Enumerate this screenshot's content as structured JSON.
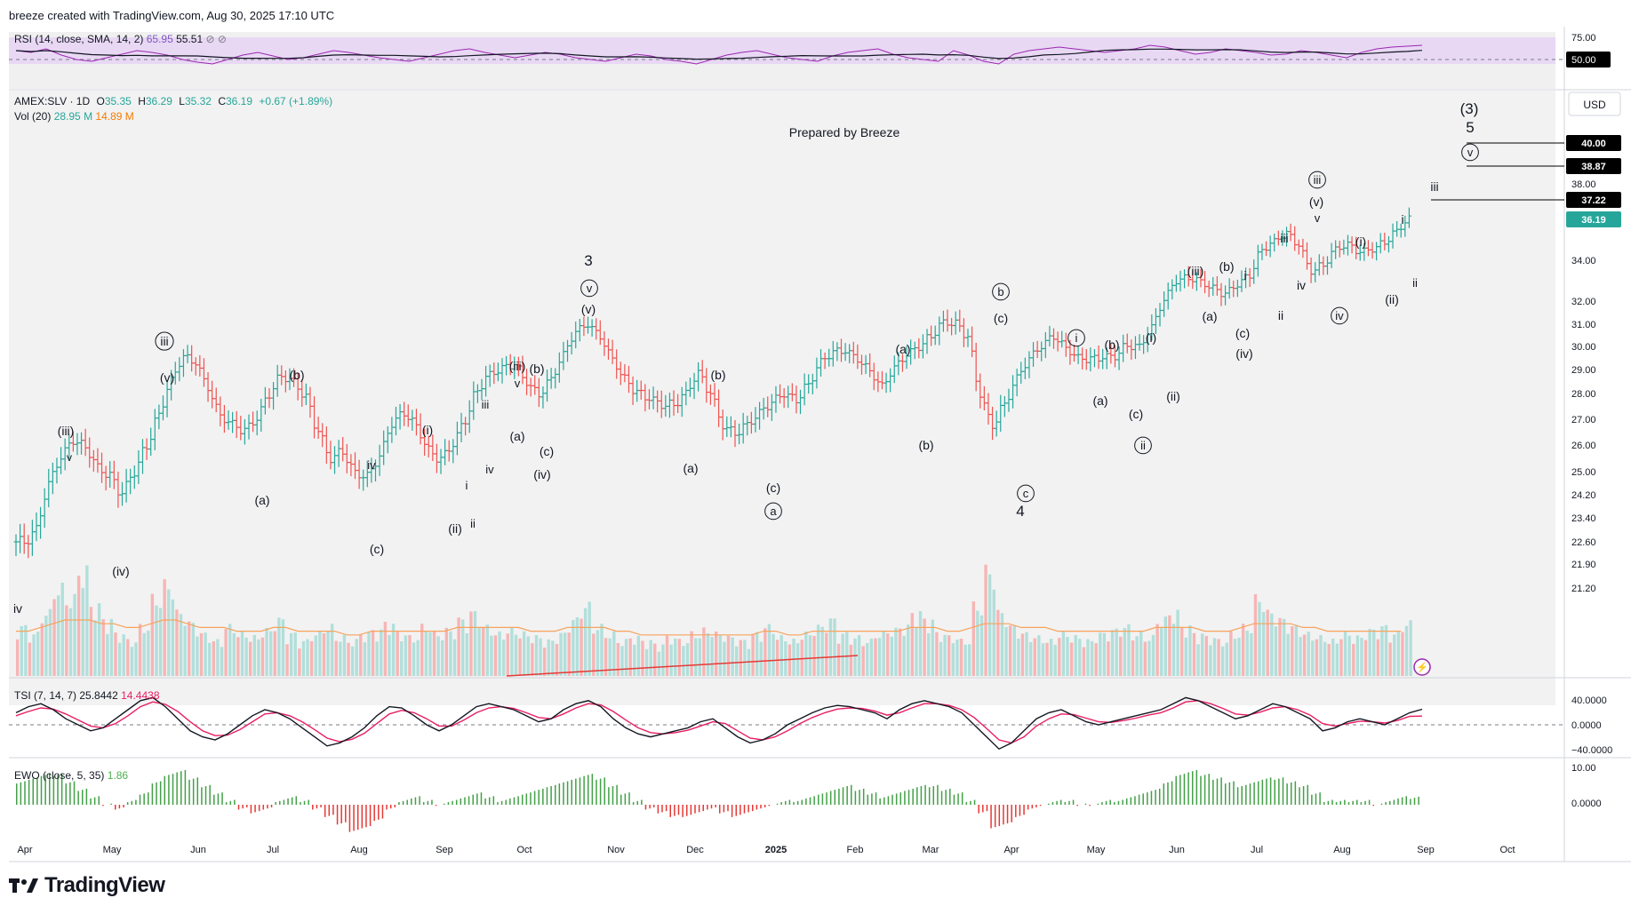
{
  "header": {
    "credit": "breeze created with TradingView.com, Aug 30, 2025 17:10 UTC"
  },
  "footer": {
    "brand": "TradingView"
  },
  "chart_data": {
    "type": "candlestick",
    "symbol_line": {
      "symbol": "AMEX:SLV · 1D",
      "o_label": "O",
      "o": "35.35",
      "h_label": "H",
      "h": "36.29",
      "l_label": "L",
      "l": "35.32",
      "c_label": "C",
      "c": "36.19",
      "change": "+0.67 (+1.89%)"
    },
    "volume_legend": {
      "label": "Vol (20)",
      "v1": "28.95 M",
      "v2": "14.89 M"
    },
    "annotation": "Prepared by Breeze",
    "currency": "USD",
    "price_axis": [
      "40.00",
      "38.87",
      "38.00",
      "37.22",
      "36.19",
      "34.00",
      "32.00",
      "31.00",
      "30.00",
      "29.00",
      "28.00",
      "27.00",
      "26.00",
      "25.00",
      "24.20",
      "23.40",
      "22.60",
      "21.90",
      "21.20"
    ],
    "price_badges": [
      {
        "value": "40.00",
        "color": "#000000"
      },
      {
        "value": "38.87",
        "color": "#000000"
      },
      {
        "value": "37.22",
        "color": "#000000"
      },
      {
        "value": "36.19",
        "color": "#26a69a"
      }
    ],
    "x_axis": [
      "Apr",
      "May",
      "Jun",
      "Jul",
      "Aug",
      "Sep",
      "Oct",
      "Nov",
      "Dec",
      "2025",
      "Feb",
      "Mar",
      "Apr",
      "May",
      "Jun",
      "Jul",
      "Aug",
      "Sep",
      "Oct"
    ],
    "x_axis_bold": "2025",
    "close_series": [
      22.6,
      23.0,
      24.5,
      25.5,
      26.2,
      26.0,
      25.2,
      24.8,
      24.2,
      25.0,
      26.0,
      27.2,
      28.5,
      29.5,
      29.3,
      28.3,
      27.2,
      26.8,
      26.5,
      27.0,
      28.0,
      28.8,
      28.5,
      27.8,
      26.5,
      25.5,
      25.8,
      25.0,
      24.8,
      25.5,
      26.8,
      27.3,
      26.8,
      25.8,
      25.4,
      26.0,
      27.0,
      28.2,
      28.8,
      29.0,
      29.2,
      28.5,
      28.0,
      28.6,
      29.6,
      30.6,
      31.0,
      30.5,
      29.5,
      28.6,
      28.0,
      27.8,
      27.6,
      27.6,
      28.0,
      28.8,
      28.0,
      26.8,
      26.5,
      26.8,
      27.2,
      27.6,
      28.0,
      27.8,
      28.4,
      29.3,
      29.7,
      29.8,
      29.5,
      29.0,
      28.3,
      29.0,
      29.6,
      30.0,
      30.5,
      31.1,
      31.0,
      30.4,
      28.0,
      26.8,
      27.6,
      28.6,
      29.4,
      30.0,
      30.5,
      30.0,
      29.5,
      29.4,
      29.5,
      29.6,
      30.1,
      30.0,
      30.8,
      32.0,
      33.0,
      33.2,
      33.0,
      32.6,
      32.3,
      32.8,
      33.3,
      34.6,
      35.0,
      35.4,
      34.8,
      33.5,
      33.8,
      34.6,
      34.8,
      34.4,
      34.6,
      35.0,
      35.6,
      36.19
    ],
    "rsi": {
      "label": "RSI (14, close, SMA, 14, 2)",
      "value": "65.95",
      "sma": "55.51",
      "axis": [
        "75.00",
        "50.00"
      ],
      "values": [
        60,
        58,
        62,
        55,
        50,
        48,
        52,
        56,
        60,
        58,
        55,
        50,
        47,
        45,
        50,
        55,
        58,
        54,
        50,
        52,
        56,
        60,
        58,
        55,
        52,
        50,
        48,
        52,
        56,
        60,
        62,
        58,
        55,
        52,
        55,
        58,
        56,
        52,
        50,
        48,
        52,
        56,
        54,
        50,
        48,
        45,
        50,
        55,
        58,
        60,
        56,
        52,
        50,
        48,
        54,
        58,
        60,
        62,
        56,
        52,
        50,
        48,
        60,
        55,
        48,
        45,
        56,
        60,
        62,
        64,
        62,
        60,
        58,
        60,
        62,
        66,
        64,
        60,
        56,
        58,
        62,
        60,
        58,
        55,
        56,
        60,
        58,
        55,
        52,
        58,
        62,
        64,
        65,
        66
      ]
    },
    "volume": {
      "values": [
        14,
        12,
        18,
        25,
        22,
        30,
        20,
        16,
        12,
        10,
        14,
        22,
        26,
        18,
        15,
        12,
        10,
        14,
        12,
        11,
        13,
        16,
        12,
        10,
        12,
        14,
        11,
        10,
        12,
        13,
        15,
        12,
        11,
        14,
        12,
        13,
        16,
        18,
        14,
        12,
        13,
        12,
        11,
        10,
        12,
        16,
        20,
        14,
        12,
        10,
        11,
        10,
        9,
        11,
        10,
        12,
        13,
        12,
        11,
        10,
        12,
        14,
        11,
        10,
        12,
        14,
        16,
        12,
        11,
        10,
        12,
        13,
        14,
        18,
        16,
        12,
        11,
        10,
        20,
        30,
        18,
        14,
        12,
        11,
        10,
        12,
        11,
        10,
        12,
        13,
        14,
        12,
        11,
        16,
        18,
        14,
        12,
        11,
        10,
        12,
        14,
        22,
        18,
        16,
        14,
        12,
        11,
        10,
        12,
        11,
        13,
        14,
        12,
        15
      ],
      "ma": [
        12,
        12,
        13,
        14,
        15,
        15,
        15,
        14,
        14,
        13,
        13,
        14,
        15,
        15,
        14,
        13,
        13,
        13,
        12,
        12,
        12,
        13,
        13,
        12,
        12,
        12,
        12,
        11,
        11,
        12,
        12,
        12,
        12,
        12,
        12,
        12,
        13,
        13,
        13,
        13,
        13,
        13,
        12,
        12,
        12,
        13,
        13,
        13,
        13,
        12,
        12,
        11,
        11,
        11,
        11,
        11,
        11,
        11,
        11,
        11,
        11,
        12,
        12,
        11,
        11,
        12,
        12,
        12,
        12,
        12,
        12,
        12,
        12,
        13,
        13,
        13,
        12,
        12,
        13,
        14,
        14,
        14,
        13,
        13,
        13,
        12,
        12,
        12,
        12,
        12,
        12,
        12,
        12,
        13,
        13,
        13,
        13,
        12,
        12,
        12,
        13,
        14,
        14,
        14,
        14,
        13,
        13,
        12,
        12,
        12,
        12,
        12,
        12,
        12
      ]
    },
    "tsi": {
      "label": "TSI (7, 14, 7)",
      "value": "25.8442",
      "signal": "14.4438",
      "axis": [
        "40.0000",
        "0.0000",
        "−40.0000"
      ],
      "values": [
        20,
        30,
        35,
        25,
        10,
        0,
        -10,
        -5,
        10,
        25,
        40,
        45,
        30,
        10,
        -10,
        -20,
        -25,
        -15,
        0,
        15,
        25,
        20,
        10,
        -5,
        -20,
        -35,
        -30,
        -20,
        -5,
        15,
        30,
        28,
        15,
        0,
        -10,
        0,
        15,
        30,
        35,
        30,
        25,
        15,
        5,
        10,
        25,
        35,
        40,
        30,
        10,
        -5,
        -15,
        -20,
        -15,
        -10,
        -5,
        5,
        10,
        -5,
        -20,
        -30,
        -25,
        -15,
        0,
        10,
        20,
        28,
        32,
        30,
        25,
        20,
        10,
        25,
        35,
        40,
        35,
        30,
        20,
        0,
        -20,
        -40,
        -30,
        -10,
        10,
        20,
        25,
        15,
        5,
        0,
        5,
        10,
        15,
        20,
        25,
        35,
        45,
        40,
        30,
        20,
        10,
        15,
        25,
        35,
        30,
        20,
        10,
        -10,
        -5,
        5,
        10,
        5,
        0,
        10,
        20,
        25.8
      ],
      "signal_values": [
        15,
        22,
        28,
        26,
        18,
        8,
        -2,
        -5,
        2,
        15,
        30,
        38,
        34,
        22,
        5,
        -10,
        -18,
        -17,
        -8,
        5,
        18,
        20,
        15,
        5,
        -8,
        -22,
        -28,
        -24,
        -14,
        2,
        18,
        24,
        20,
        10,
        -2,
        -2,
        8,
        20,
        28,
        30,
        27,
        20,
        12,
        10,
        18,
        28,
        35,
        33,
        22,
        8,
        -5,
        -13,
        -15,
        -13,
        -9,
        -2,
        5,
        2,
        -10,
        -22,
        -25,
        -20,
        -10,
        2,
        12,
        20,
        26,
        28,
        27,
        23,
        16,
        20,
        28,
        35,
        35,
        32,
        25,
        12,
        -6,
        -25,
        -30,
        -20,
        -2,
        10,
        18,
        17,
        11,
        5,
        4,
        7,
        11,
        16,
        20,
        28,
        38,
        40,
        35,
        27,
        18,
        16,
        21,
        28,
        30,
        25,
        16,
        2,
        -2,
        2,
        6,
        5,
        3,
        7,
        14,
        14.4
      ]
    },
    "ewo": {
      "label": "EWO (close, 5, 35)",
      "value": "1.86",
      "axis": [
        "10.00",
        "0.0000"
      ],
      "values": [
        6,
        7,
        8,
        8,
        6,
        4,
        2,
        0,
        -1,
        1,
        3,
        6,
        8,
        9,
        7,
        5,
        3,
        1,
        -1,
        -2,
        -1,
        1,
        2,
        1,
        -1,
        -3,
        -5,
        -7,
        -6,
        -4,
        -1,
        1,
        2,
        1,
        0,
        1,
        2,
        3,
        2,
        1,
        2,
        3,
        4,
        5,
        6,
        7,
        8,
        7,
        5,
        3,
        1,
        -1,
        -2,
        -3,
        -3,
        -2,
        -1,
        -2,
        -3,
        -2,
        -1,
        0,
        1,
        1,
        2,
        3,
        4,
        5,
        4,
        3,
        2,
        3,
        4,
        5,
        5,
        4,
        3,
        1,
        -2,
        -6,
        -5,
        -3,
        -1,
        0,
        1,
        1,
        0,
        0,
        1,
        1,
        2,
        3,
        4,
        6,
        8,
        9,
        8,
        7,
        6,
        5,
        6,
        7,
        7,
        6,
        5,
        3,
        1,
        1,
        1,
        1,
        0,
        1,
        2,
        1.86
      ]
    },
    "wave_labels": [
      "iv",
      "(iii)",
      "v",
      "(iv)",
      "iii",
      "(v)",
      "(a)",
      "(b)",
      "(c)",
      "iv",
      "(i)",
      "(ii)",
      "i",
      "ii",
      "iii",
      "iv",
      "(iii)",
      "v",
      "(a)",
      "(b)",
      "(c)",
      "(iv)",
      "3",
      "v",
      "(v)",
      "(a)",
      "(b)",
      "(c)",
      "a",
      "(a)",
      "(b)",
      "b",
      "(c)",
      "c",
      "4",
      "i",
      "(a)",
      "(b)",
      "(c)",
      "(i)",
      "(ii)",
      "ii",
      "(iii)",
      "(a)",
      "(b)",
      "i",
      "(c)",
      "(iv)",
      "iii",
      "ii",
      "iv",
      "iii",
      "(v)",
      "v",
      "(i)",
      "iv",
      "(ii)",
      "i",
      "ii",
      "(3)",
      "5",
      "v",
      "iii"
    ]
  }
}
